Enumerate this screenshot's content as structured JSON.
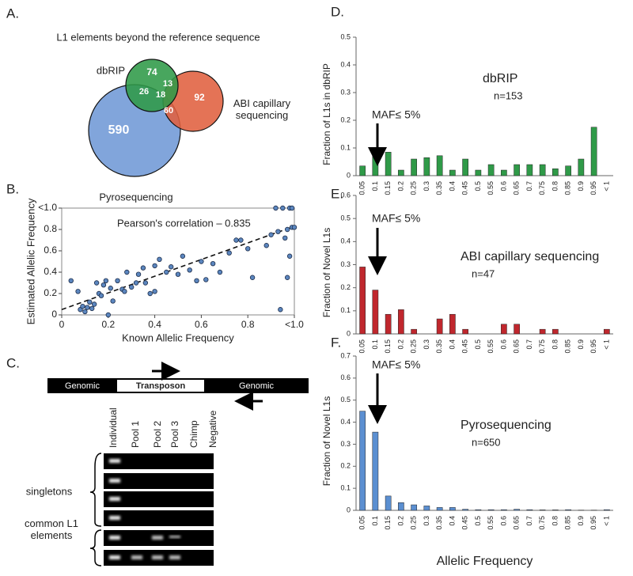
{
  "chart_data": [
    {
      "type": "venn",
      "panel_label": "A.",
      "title": "L1 elements beyond the reference sequence",
      "sets": [
        {
          "name": "dbRIP",
          "color": "#2f9a48"
        },
        {
          "name": "ABI  capillary sequencing",
          "color": "#e0603f"
        },
        {
          "name": "Pyrosequencing",
          "color": "#6f98d6"
        }
      ],
      "regions": [
        {
          "sets": [
            0
          ],
          "value": 74
        },
        {
          "sets": [
            0,
            1
          ],
          "value": 13
        },
        {
          "sets": [
            1
          ],
          "value": 92
        },
        {
          "sets": [
            0,
            2
          ],
          "value": 26
        },
        {
          "sets": [
            0,
            1,
            2
          ],
          "value": 18
        },
        {
          "sets": [
            1,
            2
          ],
          "value": 60
        },
        {
          "sets": [
            2
          ],
          "value": 590
        }
      ]
    },
    {
      "type": "scatter",
      "panel_label": "B.",
      "xlabel": "Known Allelic Frequency",
      "ylabel": "Estimated Allelic Frequency",
      "annotation": "Pearson's correlation – 0.835",
      "color": "#5b86bf",
      "x": [
        0.04,
        0.07,
        0.08,
        0.09,
        0.1,
        0.11,
        0.12,
        0.13,
        0.14,
        0.15,
        0.16,
        0.17,
        0.18,
        0.19,
        0.2,
        0.21,
        0.22,
        0.24,
        0.26,
        0.27,
        0.28,
        0.3,
        0.32,
        0.33,
        0.35,
        0.36,
        0.38,
        0.4,
        0.4,
        0.42,
        0.45,
        0.47,
        0.5,
        0.52,
        0.55,
        0.58,
        0.6,
        0.62,
        0.65,
        0.68,
        0.72,
        0.75,
        0.77,
        0.8,
        0.82,
        0.88,
        0.9,
        0.92,
        0.93,
        0.94,
        0.95,
        0.96,
        0.97,
        0.97,
        0.98,
        0.98,
        0.99,
        0.99,
        1.0
      ],
      "y": [
        0.32,
        0.22,
        0.05,
        0.08,
        0.03,
        0.07,
        0.12,
        0.06,
        0.1,
        0.3,
        0.2,
        0.18,
        0.28,
        0.32,
        0.0,
        0.25,
        0.13,
        0.32,
        0.24,
        0.22,
        0.4,
        0.26,
        0.3,
        0.38,
        0.44,
        0.3,
        0.2,
        0.46,
        0.22,
        0.52,
        0.4,
        0.45,
        0.38,
        0.55,
        0.42,
        0.32,
        0.5,
        0.33,
        0.48,
        0.4,
        0.58,
        0.7,
        0.7,
        0.62,
        0.35,
        0.65,
        0.75,
        1.0,
        0.78,
        0.05,
        1.0,
        0.72,
        0.35,
        0.8,
        1.0,
        0.55,
        1.0,
        0.82,
        0.82
      ],
      "trend_line": {
        "x": [
          0,
          1
        ],
        "y": [
          0.05,
          0.83
        ]
      },
      "xlim": [
        0,
        1
      ],
      "xticks": [
        0,
        0.2,
        0.4,
        0.6,
        0.8,
        {
          "value": 1,
          "label": "<1.0"
        }
      ],
      "ylim": [
        0,
        1
      ],
      "yticks": [
        0,
        0.2,
        0.4,
        0.6,
        0.8,
        {
          "value": 1,
          "label": "<1.0"
        }
      ]
    },
    {
      "type": "bar",
      "panel_label": "D.",
      "title": "dbRIP",
      "subtitle": "n=153",
      "annotation": "MAF≤ 5%",
      "ylabel": "Fraction of L1s in dbRIP",
      "color": "#2f9a48",
      "categories": [
        "0.05",
        "0.1",
        "0.15",
        "0.2",
        "0.25",
        "0.3",
        "0.35",
        "0.4",
        "0.45",
        "0.5",
        "0.55",
        "0.6",
        "0.65",
        "0.7",
        "0.75",
        "0.8",
        "0.85",
        "0.9",
        "0.95",
        "< 1"
      ],
      "values": [
        0.035,
        0.1,
        0.085,
        0.02,
        0.06,
        0.065,
        0.072,
        0.02,
        0.06,
        0.02,
        0.04,
        0.02,
        0.04,
        0.04,
        0.04,
        0.025,
        0.035,
        0.06,
        0.175,
        0
      ],
      "ylim": [
        0,
        0.5
      ],
      "yticks": [
        0,
        0.1,
        0.2,
        0.3,
        0.4,
        0.5
      ]
    },
    {
      "type": "bar",
      "panel_label": "E.",
      "title": "ABI capillary sequencing",
      "subtitle": "n=47",
      "annotation": "MAF≤ 5%",
      "ylabel": "Fraction of Novel L1s",
      "color": "#c0272d",
      "categories": [
        "0.05",
        "0.1",
        "0.15",
        "0.2",
        "0.25",
        "0.3",
        "0.35",
        "0.4",
        "0.45",
        "0.5",
        "0.55",
        "0.6",
        "0.65",
        "0.7",
        "0.75",
        "0.8",
        "0.85",
        "0.9",
        "0.95",
        "< 1"
      ],
      "values": [
        0.29,
        0.19,
        0.085,
        0.105,
        0.02,
        0,
        0.065,
        0.085,
        0.02,
        0,
        0,
        0.042,
        0.042,
        0,
        0.02,
        0.02,
        0,
        0,
        0,
        0.02
      ],
      "ylim": [
        0,
        0.6
      ],
      "yticks": [
        0,
        0.1,
        0.2,
        0.3,
        0.4,
        0.5,
        0.6
      ]
    },
    {
      "type": "bar",
      "panel_label": "F.",
      "title": "Pyrosequencing",
      "subtitle": "n=650",
      "annotation": "MAF≤ 5%",
      "ylabel": "Fraction of Novel L1s",
      "xlabel": "Allelic Frequency",
      "color": "#5b8fd1",
      "categories": [
        "0.05",
        "0.1",
        "0.15",
        "0.2",
        "0.25",
        "0.3",
        "0.35",
        "0.4",
        "0.45",
        "0.5",
        "0.55",
        "0.6",
        "0.65",
        "0.7",
        "0.75",
        "0.8",
        "0.85",
        "0.9",
        "0.95",
        "< 1"
      ],
      "values": [
        0.45,
        0.355,
        0.065,
        0.035,
        0.025,
        0.02,
        0.013,
        0.013,
        0.005,
        0.003,
        0.003,
        0.003,
        0.005,
        0.003,
        0.002,
        0.002,
        0.003,
        0.001,
        0.001,
        0.003
      ],
      "ylim": [
        0,
        0.7
      ],
      "yticks": [
        0,
        0.1,
        0.2,
        0.3,
        0.4,
        0.5,
        0.6,
        0.7
      ]
    }
  ],
  "gel": {
    "panel_label": "C.",
    "construct": [
      "Genomic",
      "Transposon",
      "Genomic"
    ],
    "lanes": [
      "Individual",
      "Pool 1",
      "Pool 2",
      "Pool 3",
      "Chimp",
      "Negative"
    ],
    "groups": [
      "singletons",
      "common L1 elements"
    ]
  }
}
